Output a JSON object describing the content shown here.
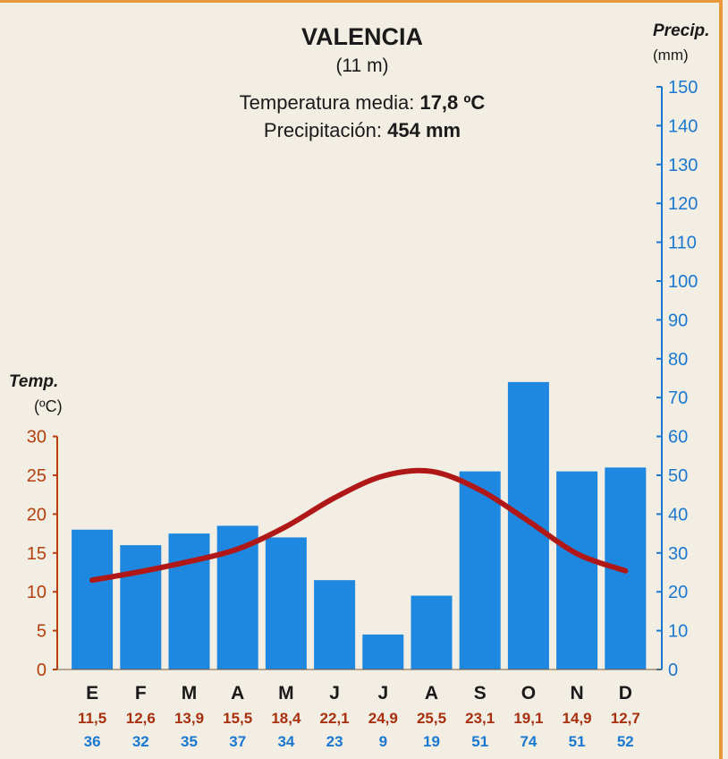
{
  "chart_data": {
    "type": "bar+line",
    "title": "VALENCIA",
    "subtitle": "(11 m)",
    "summary": {
      "temp_label": "Temperatura media:",
      "temp_value": "17,8 ºC",
      "precip_label": "Precipitación:",
      "precip_value": "454 mm"
    },
    "categories": [
      "E",
      "F",
      "M",
      "A",
      "M",
      "J",
      "J",
      "A",
      "S",
      "O",
      "N",
      "D"
    ],
    "temp_axis": {
      "title": "Temp.",
      "unit": "(ºC)",
      "range": [
        0,
        30
      ],
      "ticks": [
        0,
        5,
        10,
        15,
        20,
        25,
        30
      ]
    },
    "precip_axis": {
      "title": "Precip.",
      "unit": "(mm)",
      "range": [
        0,
        150
      ],
      "ticks": [
        0,
        10,
        20,
        30,
        40,
        50,
        60,
        70,
        80,
        90,
        100,
        110,
        120,
        130,
        140,
        150
      ]
    },
    "series": [
      {
        "name": "Temperatura",
        "type": "line",
        "axis": "left",
        "values": [
          11.5,
          12.6,
          13.9,
          15.5,
          18.4,
          22.1,
          24.9,
          25.5,
          23.1,
          19.1,
          14.9,
          12.7
        ],
        "labels": [
          "11,5",
          "12,6",
          "13,9",
          "15,5",
          "18,4",
          "22,1",
          "24,9",
          "25,5",
          "23,1",
          "19,1",
          "14,9",
          "12,7"
        ]
      },
      {
        "name": "Precipitación",
        "type": "bar",
        "axis": "right",
        "values": [
          36,
          32,
          35,
          37,
          34,
          23,
          9,
          19,
          51,
          74,
          51,
          52
        ],
        "labels": [
          "36",
          "32",
          "35",
          "37",
          "34",
          "23",
          "9",
          "19",
          "51",
          "74",
          "51",
          "52"
        ]
      }
    ],
    "colors": {
      "bar": "#1e88e0",
      "line": "#b01818",
      "temp_axis": "#b5400e",
      "precip_axis": "#1a78d0"
    }
  }
}
